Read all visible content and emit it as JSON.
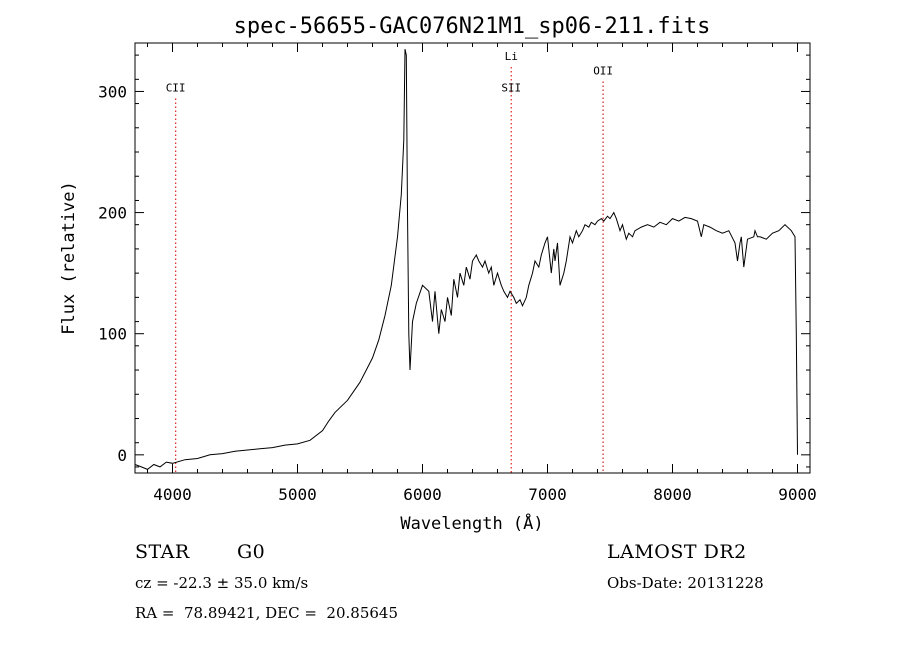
{
  "chart_data": {
    "type": "line",
    "title": "spec-56655-GAC076N21M1_sp06-211.fits",
    "xlabel": "Wavelength (Å)",
    "ylabel": "Flux (relative)",
    "xlim": [
      3700,
      9100
    ],
    "ylim": [
      -15,
      340
    ],
    "x_ticks": [
      4000,
      5000,
      6000,
      7000,
      8000,
      9000
    ],
    "y_ticks": [
      0,
      100,
      200,
      300
    ],
    "grid": false,
    "series": [
      {
        "x": [
          3700,
          3750,
          3800,
          3850,
          3900,
          3950,
          4000,
          4100,
          4200,
          4300,
          4400,
          4500,
          4600,
          4700,
          4800,
          4900,
          5000,
          5100,
          5200,
          5250,
          5300,
          5400,
          5500,
          5550,
          5600,
          5650,
          5700,
          5750,
          5800,
          5830,
          5850,
          5860,
          5870,
          5880,
          5890,
          5900,
          5920,
          5950,
          6000,
          6050,
          6080,
          6100,
          6130,
          6150,
          6180,
          6200,
          6230,
          6250,
          6280,
          6300,
          6330,
          6350,
          6380,
          6400,
          6430,
          6450,
          6480,
          6500,
          6530,
          6550,
          6570,
          6600,
          6630,
          6650,
          6680,
          6700,
          6730,
          6750,
          6780,
          6800,
          6830,
          6850,
          6880,
          6900,
          6930,
          6950,
          6980,
          7000,
          7030,
          7050,
          7060,
          7080,
          7100,
          7130,
          7150,
          7180,
          7200,
          7230,
          7250,
          7280,
          7300,
          7330,
          7350,
          7380,
          7400,
          7430,
          7450,
          7480,
          7500,
          7530,
          7550,
          7580,
          7600,
          7630,
          7650,
          7680,
          7700,
          7750,
          7800,
          7850,
          7900,
          7950,
          8000,
          8050,
          8100,
          8150,
          8200,
          8230,
          8250,
          8300,
          8350,
          8400,
          8450,
          8500,
          8520,
          8540,
          8550,
          8570,
          8600,
          8650,
          8660,
          8680,
          8700,
          8750,
          8800,
          8850,
          8900,
          8950,
          8980,
          8990,
          9000
        ],
        "y": [
          -8,
          -10,
          -12,
          -8,
          -10,
          -6,
          -7,
          -4,
          -3,
          0,
          1,
          3,
          4,
          5,
          6,
          8,
          9,
          12,
          20,
          28,
          35,
          45,
          60,
          70,
          80,
          95,
          115,
          140,
          180,
          215,
          260,
          335,
          330,
          200,
          100,
          70,
          110,
          125,
          140,
          135,
          110,
          135,
          100,
          120,
          110,
          130,
          115,
          145,
          130,
          150,
          140,
          155,
          145,
          160,
          165,
          160,
          155,
          160,
          150,
          155,
          140,
          150,
          140,
          135,
          130,
          135,
          130,
          125,
          128,
          123,
          130,
          140,
          150,
          160,
          155,
          165,
          175,
          180,
          150,
          170,
          160,
          175,
          140,
          150,
          160,
          180,
          175,
          185,
          180,
          185,
          190,
          188,
          192,
          190,
          193,
          195,
          193,
          197,
          195,
          200,
          195,
          185,
          190,
          178,
          183,
          180,
          185,
          188,
          190,
          188,
          192,
          190,
          195,
          193,
          196,
          195,
          193,
          180,
          190,
          188,
          185,
          183,
          185,
          175,
          160,
          175,
          180,
          155,
          178,
          180,
          185,
          180,
          180,
          178,
          183,
          185,
          190,
          185,
          180,
          100,
          0
        ]
      }
    ],
    "annotations": [
      {
        "label": "CII",
        "x": 4025,
        "label_y": 300
      },
      {
        "label": "Li",
        "x": 6710,
        "label_y": 326
      },
      {
        "label": "SII",
        "x": 6710,
        "label_y": 300
      },
      {
        "label": "OII",
        "x": 7445,
        "label_y": 314
      }
    ],
    "annotation_color": "#e03030"
  },
  "info": {
    "object_class": "STAR",
    "subclass": "G0",
    "survey": "LAMOST DR2",
    "cz": "cz = -22.3 ± 35.0 km/s",
    "obs_date": "Obs-Date: 20131228",
    "coords": "RA =  78.89421, DEC =  20.85645"
  }
}
